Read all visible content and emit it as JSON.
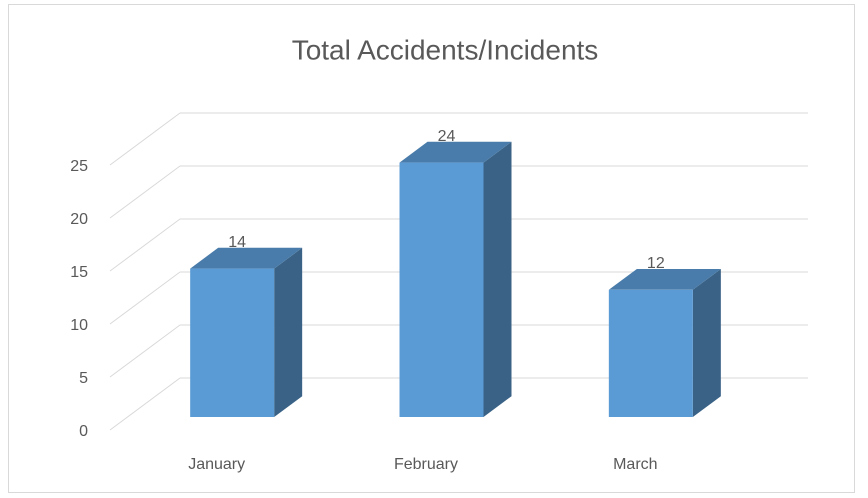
{
  "chart_data": {
    "type": "bar3d",
    "title": "Total Accidents/Incidents",
    "categories": [
      "January",
      "February",
      "March"
    ],
    "values": [
      14,
      24,
      12
    ],
    "color": "#5b9bd5",
    "ylim": [
      0,
      25
    ],
    "yticks": [
      0,
      5,
      10,
      15,
      20,
      25
    ],
    "grid": true
  }
}
